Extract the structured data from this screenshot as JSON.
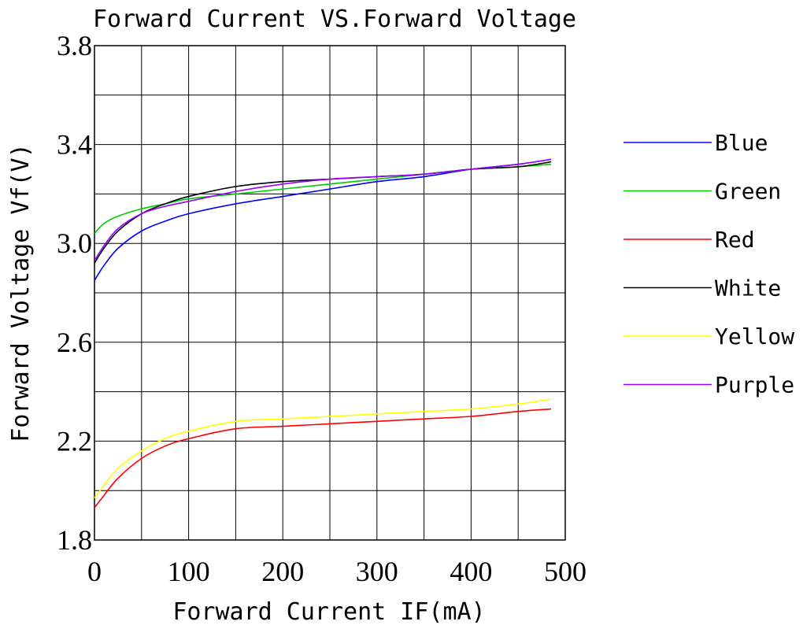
{
  "chart_data": {
    "type": "line",
    "title": "Forward Current VS.Forward Voltage",
    "xlabel": "Forward Current IF(mA)",
    "ylabel": "Forward Voltage Vf(V)",
    "xlim": [
      0,
      500
    ],
    "ylim": [
      1.8,
      3.8
    ],
    "x_ticks": [
      0,
      100,
      200,
      300,
      400,
      500
    ],
    "x_tick_labels": [
      "0",
      "100",
      "200",
      "300",
      "400",
      "500"
    ],
    "y_ticks": [
      1.8,
      2.2,
      2.6,
      3.0,
      3.4,
      3.8
    ],
    "y_tick_labels": [
      "1.8",
      "2.2",
      "2.6",
      "3.0",
      "3.4",
      "3.8"
    ],
    "x_grid_step": 50,
    "y_grid_step": 0.2,
    "grid": true,
    "legend_position": "right",
    "series": [
      {
        "name": "Blue",
        "color": "#0000ff",
        "x": [
          0,
          10,
          25,
          50,
          75,
          100,
          150,
          200,
          250,
          300,
          350,
          400,
          450,
          485
        ],
        "y": [
          2.85,
          2.91,
          2.98,
          3.05,
          3.09,
          3.12,
          3.16,
          3.19,
          3.22,
          3.25,
          3.27,
          3.3,
          3.32,
          3.34
        ]
      },
      {
        "name": "Green",
        "color": "#00cc00",
        "x": [
          0,
          10,
          25,
          50,
          75,
          100,
          150,
          200,
          250,
          300,
          350,
          400,
          450,
          485
        ],
        "y": [
          3.04,
          3.08,
          3.11,
          3.14,
          3.16,
          3.18,
          3.2,
          3.22,
          3.24,
          3.26,
          3.28,
          3.3,
          3.31,
          3.32
        ]
      },
      {
        "name": "Red",
        "color": "#ff0000",
        "x": [
          0,
          10,
          25,
          50,
          75,
          100,
          150,
          200,
          250,
          300,
          350,
          400,
          450,
          485
        ],
        "y": [
          1.93,
          1.98,
          2.05,
          2.13,
          2.18,
          2.21,
          2.25,
          2.26,
          2.27,
          2.28,
          2.29,
          2.3,
          2.32,
          2.33
        ]
      },
      {
        "name": "White",
        "color": "#000000",
        "x": [
          0,
          10,
          25,
          50,
          75,
          100,
          150,
          200,
          250,
          300,
          350,
          400,
          450,
          485
        ],
        "y": [
          2.92,
          2.98,
          3.05,
          3.12,
          3.16,
          3.19,
          3.23,
          3.25,
          3.26,
          3.27,
          3.28,
          3.3,
          3.31,
          3.33
        ]
      },
      {
        "name": "Yellow",
        "color": "#ffff00",
        "x": [
          0,
          10,
          25,
          50,
          75,
          100,
          150,
          200,
          250,
          300,
          350,
          400,
          450,
          485
        ],
        "y": [
          1.97,
          2.02,
          2.09,
          2.16,
          2.21,
          2.24,
          2.28,
          2.29,
          2.3,
          2.31,
          2.32,
          2.33,
          2.35,
          2.37
        ]
      },
      {
        "name": "Purple",
        "color": "#9900ff",
        "x": [
          0,
          10,
          25,
          50,
          75,
          100,
          150,
          200,
          250,
          300,
          350,
          400,
          450,
          485
        ],
        "y": [
          2.93,
          2.99,
          3.06,
          3.12,
          3.15,
          3.17,
          3.21,
          3.24,
          3.26,
          3.27,
          3.28,
          3.3,
          3.32,
          3.34
        ]
      }
    ]
  }
}
